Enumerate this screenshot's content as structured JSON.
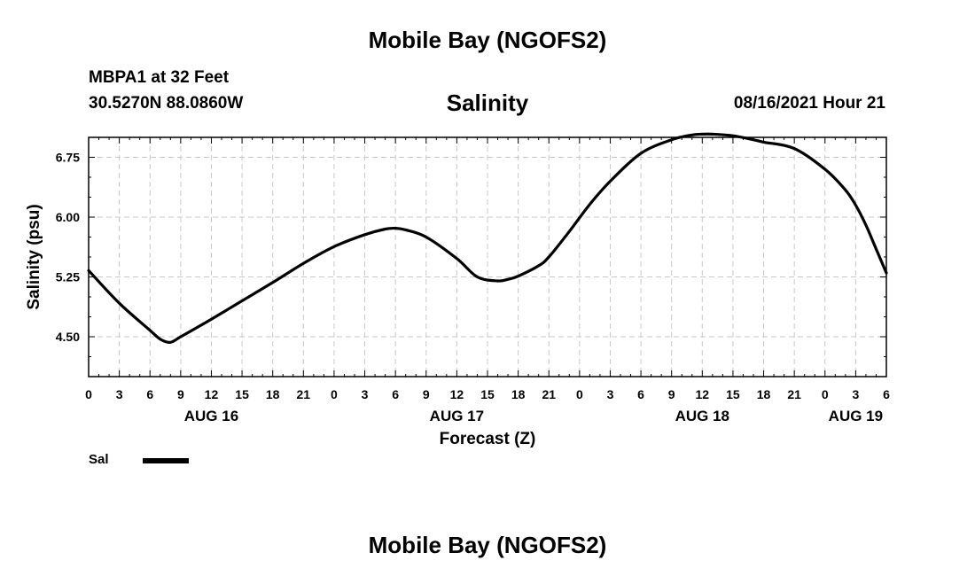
{
  "header": {
    "title": "Mobile Bay (NGOFS2)",
    "station": "MBPA1 at 32 Feet",
    "coords": "30.5270N  88.0860W",
    "chart_title": "Salinity",
    "datetime": "08/16/2021 Hour 21"
  },
  "footer": {
    "title": "Mobile Bay (NGOFS2)"
  },
  "legend": {
    "label": "Sal"
  },
  "colors": {
    "line": "#000000",
    "grid": "#c8c8c8",
    "background": "#ffffff"
  },
  "chart_data": {
    "type": "line",
    "title": "Salinity",
    "xlabel": "Forecast (Z)",
    "ylabel": "Salinity (psu)",
    "x_unit": "hours from 08/16/2021 00Z",
    "xlim": [
      0,
      78
    ],
    "ylim": [
      4.0,
      7.0
    ],
    "y_ticks": [
      4.5,
      5.25,
      6.0,
      6.75
    ],
    "y_tick_labels": [
      "4.50",
      "5.25",
      "6.00",
      "6.75"
    ],
    "x_ticks": [
      0,
      3,
      6,
      9,
      12,
      15,
      18,
      21,
      24,
      27,
      30,
      33,
      36,
      39,
      42,
      45,
      48,
      51,
      54,
      57,
      60,
      63,
      66,
      69,
      72,
      75,
      78
    ],
    "x_tick_labels": [
      "0",
      "3",
      "6",
      "9",
      "12",
      "15",
      "18",
      "21",
      "0",
      "3",
      "6",
      "9",
      "12",
      "15",
      "18",
      "21",
      "0",
      "3",
      "6",
      "9",
      "12",
      "15",
      "18",
      "21",
      "0",
      "3",
      "6"
    ],
    "date_labels": [
      {
        "x": 12,
        "label": "AUG 16"
      },
      {
        "x": 36,
        "label": "AUG 17"
      },
      {
        "x": 60,
        "label": "AUG 18"
      },
      {
        "x": 75,
        "label": "AUG 19"
      }
    ],
    "grid": true,
    "legend_position": "bottom-left",
    "series": [
      {
        "name": "Sal",
        "x": [
          0,
          3,
          6,
          7,
          8,
          9,
          12,
          15,
          18,
          21,
          24,
          27,
          29,
          30,
          31,
          33,
          36,
          38,
          40,
          41,
          42,
          44,
          45,
          47,
          49,
          51,
          54,
          57,
          59,
          60,
          61,
          63,
          65,
          66,
          69,
          72,
          74,
          75,
          76,
          77,
          78
        ],
        "y": [
          5.33,
          4.92,
          4.58,
          4.47,
          4.43,
          4.5,
          4.72,
          4.95,
          5.18,
          5.42,
          5.63,
          5.78,
          5.85,
          5.86,
          5.84,
          5.75,
          5.48,
          5.25,
          5.2,
          5.22,
          5.26,
          5.39,
          5.5,
          5.82,
          6.16,
          6.45,
          6.8,
          6.97,
          7.03,
          7.04,
          7.04,
          7.02,
          6.97,
          6.94,
          6.86,
          6.6,
          6.34,
          6.15,
          5.9,
          5.6,
          5.3
        ]
      }
    ]
  }
}
